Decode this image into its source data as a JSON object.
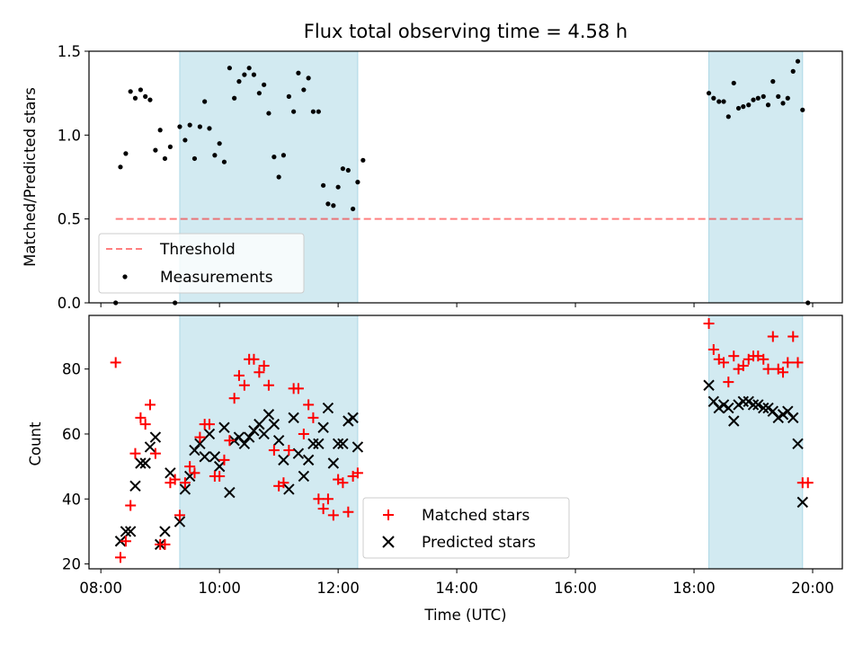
{
  "title": "Flux total observing time = 4.58 h",
  "colors": {
    "band": "#add8e6",
    "threshold": "#ff0000",
    "measurements": "#000000",
    "matched": "#ff0000",
    "predicted": "#000000"
  },
  "chart_data": [
    {
      "type": "scatter",
      "ylabel": "Matched/Predicted stars",
      "xlim": [
        7.8,
        20.5
      ],
      "ylim": [
        0,
        1.5
      ],
      "yticks": [
        "0.0",
        "0.5",
        "1.0",
        "1.5"
      ],
      "grid": false,
      "legend_position": "lower-left",
      "shaded_intervals": [
        [
          9.33,
          12.33
        ],
        [
          18.25,
          19.83
        ]
      ],
      "threshold": {
        "name": "Threshold",
        "value": 0.5,
        "x_range": [
          8.25,
          19.83
        ]
      },
      "series": [
        {
          "name": "Measurements",
          "points": [
            [
              8.25,
              0.0
            ],
            [
              8.33,
              0.81
            ],
            [
              8.42,
              0.89
            ],
            [
              8.5,
              1.26
            ],
            [
              8.58,
              1.22
            ],
            [
              8.67,
              1.27
            ],
            [
              8.75,
              1.23
            ],
            [
              8.83,
              1.21
            ],
            [
              8.92,
              0.91
            ],
            [
              9.0,
              1.03
            ],
            [
              9.08,
              0.86
            ],
            [
              9.17,
              0.93
            ],
            [
              9.25,
              0.0
            ],
            [
              9.33,
              1.05
            ],
            [
              9.42,
              0.97
            ],
            [
              9.5,
              1.06
            ],
            [
              9.58,
              0.86
            ],
            [
              9.67,
              1.05
            ],
            [
              9.75,
              1.2
            ],
            [
              9.83,
              1.04
            ],
            [
              9.92,
              0.88
            ],
            [
              10.0,
              0.95
            ],
            [
              10.08,
              0.84
            ],
            [
              10.17,
              1.4
            ],
            [
              10.25,
              1.22
            ],
            [
              10.33,
              1.32
            ],
            [
              10.42,
              1.36
            ],
            [
              10.5,
              1.4
            ],
            [
              10.58,
              1.36
            ],
            [
              10.67,
              1.25
            ],
            [
              10.75,
              1.3
            ],
            [
              10.83,
              1.13
            ],
            [
              10.92,
              0.87
            ],
            [
              11.0,
              0.75
            ],
            [
              11.08,
              0.88
            ],
            [
              11.17,
              1.23
            ],
            [
              11.25,
              1.14
            ],
            [
              11.33,
              1.37
            ],
            [
              11.42,
              1.27
            ],
            [
              11.5,
              1.34
            ],
            [
              11.58,
              1.14
            ],
            [
              11.67,
              1.14
            ],
            [
              11.75,
              0.7
            ],
            [
              11.83,
              0.59
            ],
            [
              11.92,
              0.58
            ],
            [
              12.0,
              0.69
            ],
            [
              12.08,
              0.8
            ],
            [
              12.17,
              0.79
            ],
            [
              12.25,
              0.56
            ],
            [
              12.33,
              0.72
            ],
            [
              12.42,
              0.85
            ],
            [
              18.25,
              1.25
            ],
            [
              18.33,
              1.22
            ],
            [
              18.42,
              1.2
            ],
            [
              18.5,
              1.2
            ],
            [
              18.58,
              1.11
            ],
            [
              18.67,
              1.31
            ],
            [
              18.75,
              1.16
            ],
            [
              18.83,
              1.17
            ],
            [
              18.92,
              1.18
            ],
            [
              19.0,
              1.21
            ],
            [
              19.08,
              1.22
            ],
            [
              19.17,
              1.23
            ],
            [
              19.25,
              1.18
            ],
            [
              19.33,
              1.32
            ],
            [
              19.42,
              1.23
            ],
            [
              19.5,
              1.19
            ],
            [
              19.58,
              1.22
            ],
            [
              19.67,
              1.38
            ],
            [
              19.75,
              1.44
            ],
            [
              19.83,
              1.15
            ],
            [
              19.92,
              0.0
            ]
          ]
        }
      ]
    },
    {
      "type": "scatter",
      "ylabel": "Count",
      "xlabel": "Time (UTC)",
      "xlim": [
        7.8,
        20.5
      ],
      "ylim": [
        18.5,
        96.5
      ],
      "yticks": [
        "20",
        "40",
        "60",
        "80"
      ],
      "xticks": [
        "08:00",
        "10:00",
        "12:00",
        "14:00",
        "16:00",
        "18:00",
        "20:00"
      ],
      "grid": false,
      "legend_position": "lower-center",
      "shaded_intervals": [
        [
          9.33,
          12.33
        ],
        [
          18.25,
          19.83
        ]
      ],
      "series": [
        {
          "name": "Matched stars",
          "points": [
            [
              8.25,
              82
            ],
            [
              8.33,
              22
            ],
            [
              8.42,
              27
            ],
            [
              8.5,
              38
            ],
            [
              8.58,
              54
            ],
            [
              8.67,
              65
            ],
            [
              8.75,
              63
            ],
            [
              8.83,
              69
            ],
            [
              8.92,
              54
            ],
            [
              9.0,
              26
            ],
            [
              9.08,
              26
            ],
            [
              9.17,
              45
            ],
            [
              9.25,
              46
            ],
            [
              9.33,
              35
            ],
            [
              9.42,
              45
            ],
            [
              9.5,
              50
            ],
            [
              9.58,
              48
            ],
            [
              9.67,
              59
            ],
            [
              9.75,
              63
            ],
            [
              9.83,
              63
            ],
            [
              9.92,
              47
            ],
            [
              10.0,
              47
            ],
            [
              10.08,
              52
            ],
            [
              10.17,
              58
            ],
            [
              10.25,
              71
            ],
            [
              10.33,
              78
            ],
            [
              10.42,
              75
            ],
            [
              10.5,
              83
            ],
            [
              10.58,
              83
            ],
            [
              10.67,
              79
            ],
            [
              10.75,
              81
            ],
            [
              10.83,
              75
            ],
            [
              10.92,
              55
            ],
            [
              11.0,
              44
            ],
            [
              11.08,
              45
            ],
            [
              11.17,
              55
            ],
            [
              11.25,
              74
            ],
            [
              11.33,
              74
            ],
            [
              11.42,
              60
            ],
            [
              11.5,
              69
            ],
            [
              11.58,
              65
            ],
            [
              11.67,
              40
            ],
            [
              11.75,
              37
            ],
            [
              11.83,
              40
            ],
            [
              11.92,
              35
            ],
            [
              12.0,
              46
            ],
            [
              12.08,
              45
            ],
            [
              12.17,
              36
            ],
            [
              12.25,
              47
            ],
            [
              12.33,
              48
            ],
            [
              18.25,
              94
            ],
            [
              18.33,
              86
            ],
            [
              18.42,
              83
            ],
            [
              18.5,
              82
            ],
            [
              18.58,
              76
            ],
            [
              18.67,
              84
            ],
            [
              18.75,
              80
            ],
            [
              18.83,
              81
            ],
            [
              18.92,
              83
            ],
            [
              19.0,
              84
            ],
            [
              19.08,
              84
            ],
            [
              19.17,
              83
            ],
            [
              19.25,
              80
            ],
            [
              19.33,
              90
            ],
            [
              19.42,
              80
            ],
            [
              19.5,
              79
            ],
            [
              19.58,
              82
            ],
            [
              19.67,
              90
            ],
            [
              19.75,
              82
            ],
            [
              19.83,
              45
            ],
            [
              19.92,
              45
            ]
          ]
        },
        {
          "name": "Predicted stars",
          "points": [
            [
              8.33,
              27
            ],
            [
              8.42,
              30
            ],
            [
              8.5,
              30
            ],
            [
              8.58,
              44
            ],
            [
              8.67,
              51
            ],
            [
              8.75,
              51
            ],
            [
              8.83,
              56
            ],
            [
              8.92,
              59
            ],
            [
              9.0,
              26
            ],
            [
              9.08,
              30
            ],
            [
              9.17,
              48
            ],
            [
              9.33,
              33
            ],
            [
              9.42,
              43
            ],
            [
              9.5,
              47
            ],
            [
              9.58,
              55
            ],
            [
              9.67,
              57
            ],
            [
              9.75,
              53
            ],
            [
              9.83,
              60
            ],
            [
              9.92,
              53
            ],
            [
              10.0,
              50
            ],
            [
              10.08,
              62
            ],
            [
              10.17,
              42
            ],
            [
              10.25,
              58
            ],
            [
              10.33,
              59
            ],
            [
              10.42,
              57
            ],
            [
              10.5,
              59
            ],
            [
              10.58,
              61
            ],
            [
              10.67,
              63
            ],
            [
              10.75,
              60
            ],
            [
              10.83,
              66
            ],
            [
              10.92,
              63
            ],
            [
              11.0,
              58
            ],
            [
              11.08,
              52
            ],
            [
              11.17,
              43
            ],
            [
              11.25,
              65
            ],
            [
              11.33,
              54
            ],
            [
              11.42,
              47
            ],
            [
              11.5,
              52
            ],
            [
              11.58,
              57
            ],
            [
              11.67,
              57
            ],
            [
              11.75,
              62
            ],
            [
              11.83,
              68
            ],
            [
              11.92,
              51
            ],
            [
              12.0,
              57
            ],
            [
              12.08,
              57
            ],
            [
              12.17,
              64
            ],
            [
              12.25,
              65
            ],
            [
              12.33,
              56
            ],
            [
              18.25,
              75
            ],
            [
              18.33,
              70
            ],
            [
              18.42,
              68
            ],
            [
              18.5,
              69
            ],
            [
              18.58,
              68
            ],
            [
              18.67,
              64
            ],
            [
              18.75,
              69
            ],
            [
              18.83,
              70
            ],
            [
              18.92,
              70
            ],
            [
              19.0,
              69
            ],
            [
              19.08,
              69
            ],
            [
              19.17,
              68
            ],
            [
              19.25,
              68
            ],
            [
              19.33,
              67
            ],
            [
              19.42,
              65
            ],
            [
              19.5,
              66
            ],
            [
              19.58,
              67
            ],
            [
              19.67,
              65
            ],
            [
              19.75,
              57
            ],
            [
              19.83,
              39
            ]
          ]
        }
      ]
    }
  ]
}
